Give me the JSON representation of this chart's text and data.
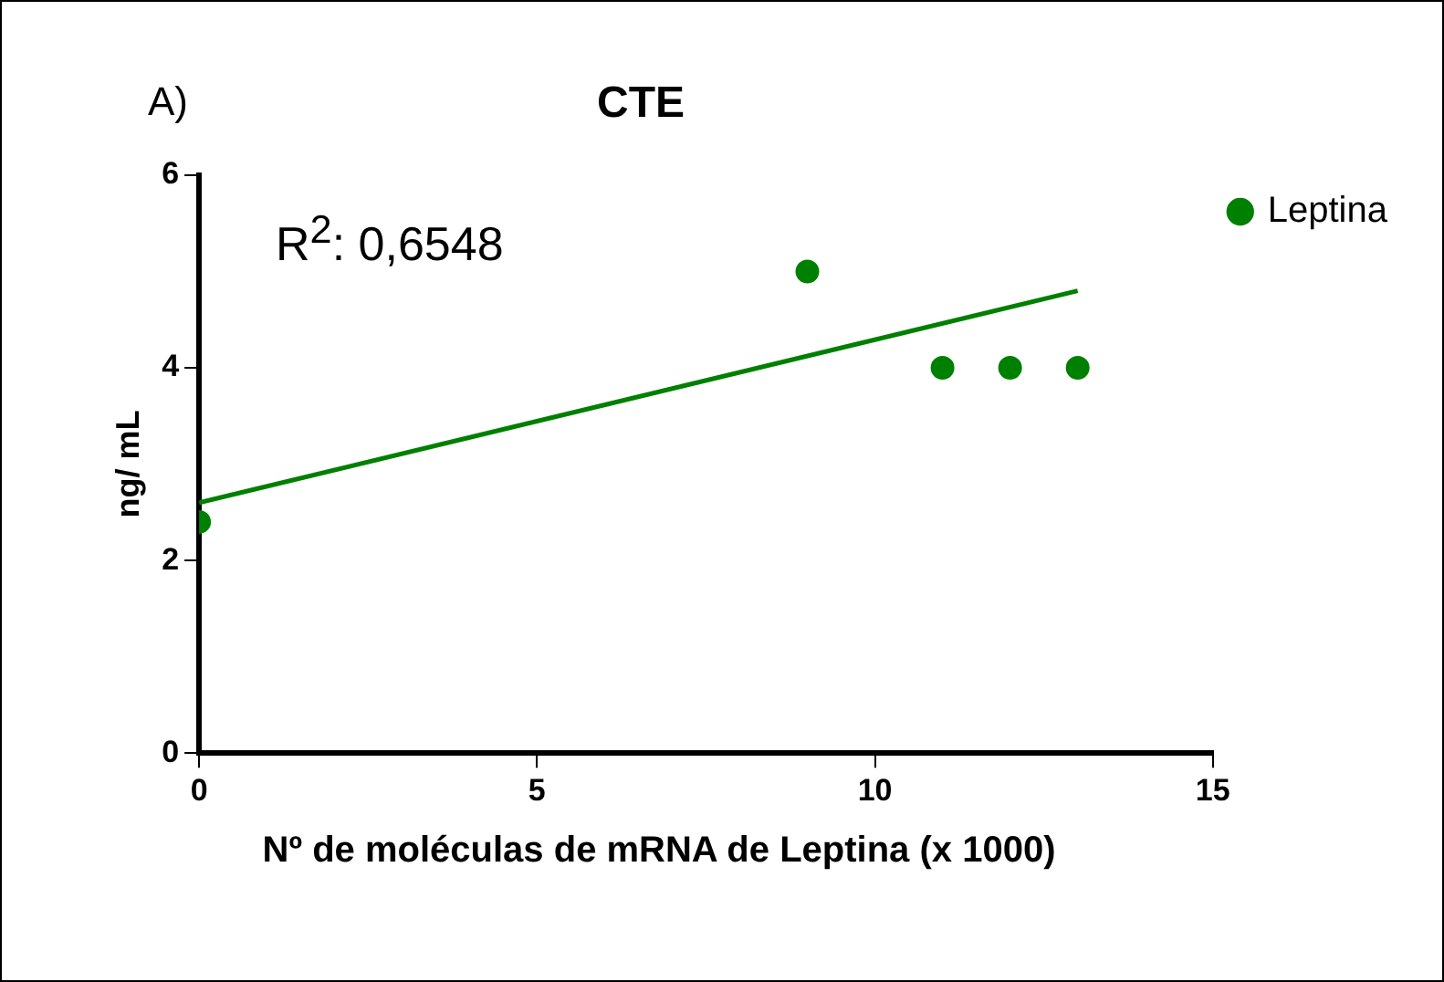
{
  "chart_data": {
    "type": "scatter",
    "title": "CTE",
    "xlabel": "Nº de moléculas de mRNA de Leptina (x 1000)",
    "ylabel": "ng/ mL",
    "annotations": [
      "A)",
      "R$^{2}$: 0,6548"
    ],
    "series": [
      {
        "name": "Leptina",
        "type": "scatter",
        "color": "#008000",
        "x": [
          0,
          9,
          11,
          12,
          13
        ],
        "values": [
          2.4,
          5,
          4,
          4,
          4
        ],
        "marker": "circle"
      },
      {
        "type": "line",
        "color": "#008000",
        "x": [
          0,
          13
        ],
        "values": [
          2.6,
          4.8
        ],
        "marker": "none",
        "line_style": "solid"
      }
    ],
    "xlim": [
      0,
      15
    ],
    "xticks": [
      0,
      5,
      10,
      15
    ],
    "ylim": [
      0,
      6
    ],
    "yticks": [
      0,
      2,
      4,
      6
    ],
    "grid": false,
    "legend": "top right"
  }
}
